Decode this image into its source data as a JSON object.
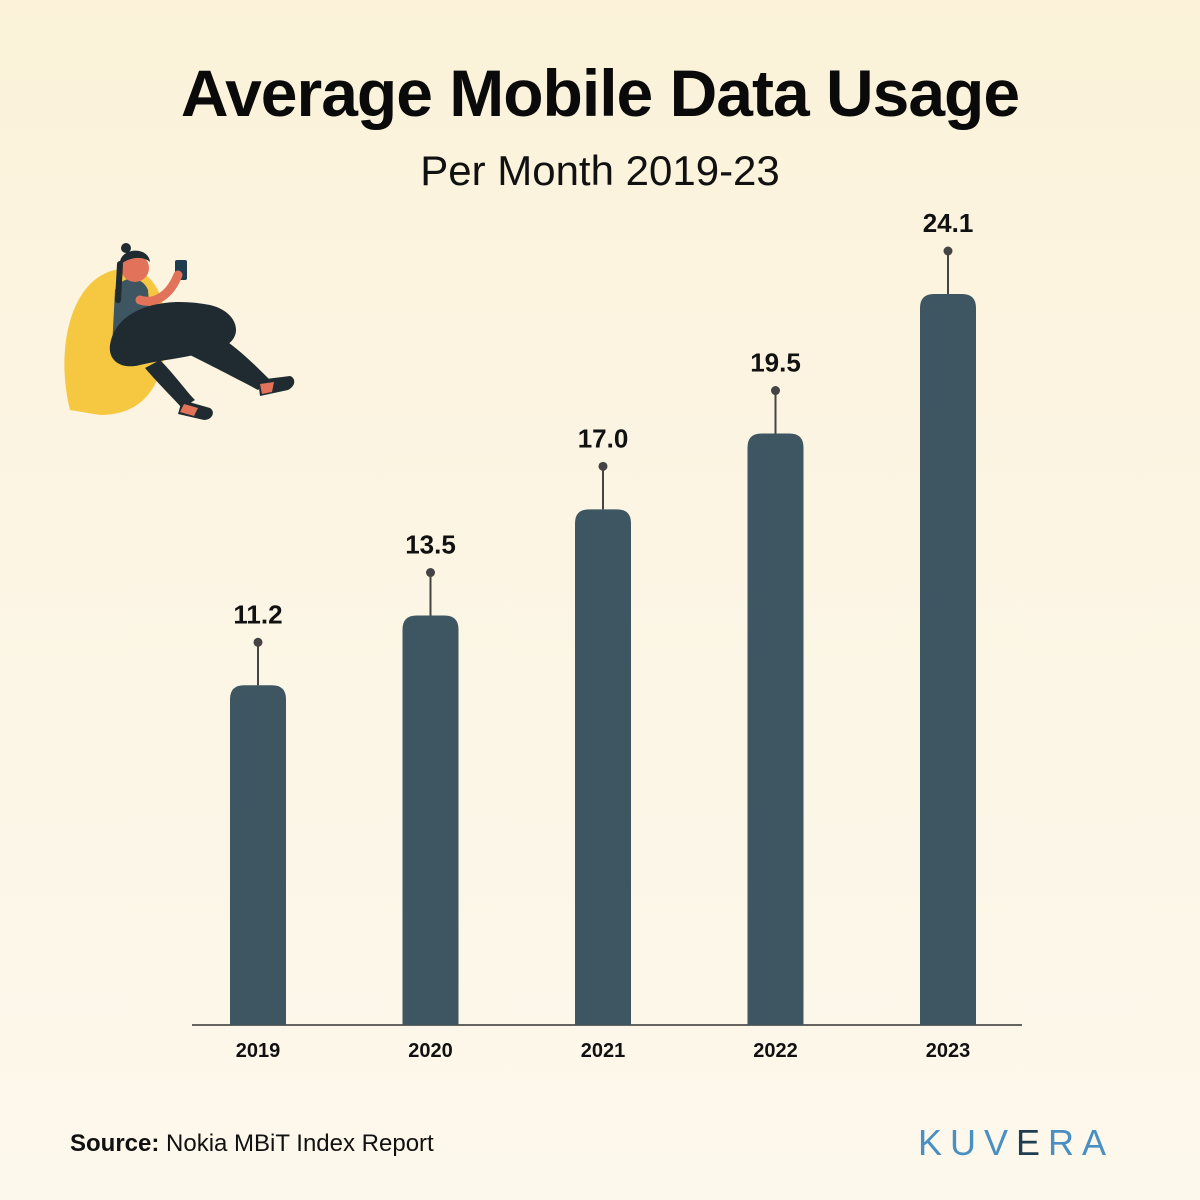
{
  "header": {
    "title": "Average Mobile Data Usage",
    "subtitle": "Per Month 2019-23"
  },
  "chart_data": {
    "type": "bar",
    "categories": [
      "2019",
      "2020",
      "2021",
      "2022",
      "2023"
    ],
    "values": [
      11.2,
      13.5,
      17.0,
      19.5,
      24.1
    ],
    "value_labels": [
      "11.2",
      "13.5",
      "17.0",
      "19.5",
      "24.1"
    ],
    "title": "Average Mobile Data Usage",
    "subtitle": "Per Month 2019-23",
    "xlabel": "",
    "ylabel": "",
    "ylim": [
      0,
      24.1
    ],
    "grid": false,
    "legend": "none",
    "bar_color": "#3e5661"
  },
  "footer": {
    "source_label": "Source:",
    "source_text": " Nokia MBiT Index Report",
    "brand_part1": "KUV",
    "brand_part2": "E",
    "brand_part3": "RA"
  },
  "colors": {
    "background": "#fcf5e4",
    "bar": "#3e5661",
    "brand_blue": "#4a8fc2",
    "brand_dark": "#1f3d4f",
    "illustration_yellow": "#f6c842",
    "illustration_skin": "#e2735a"
  },
  "icons": {
    "illustration": "woman-sitting-with-phone-icon"
  }
}
